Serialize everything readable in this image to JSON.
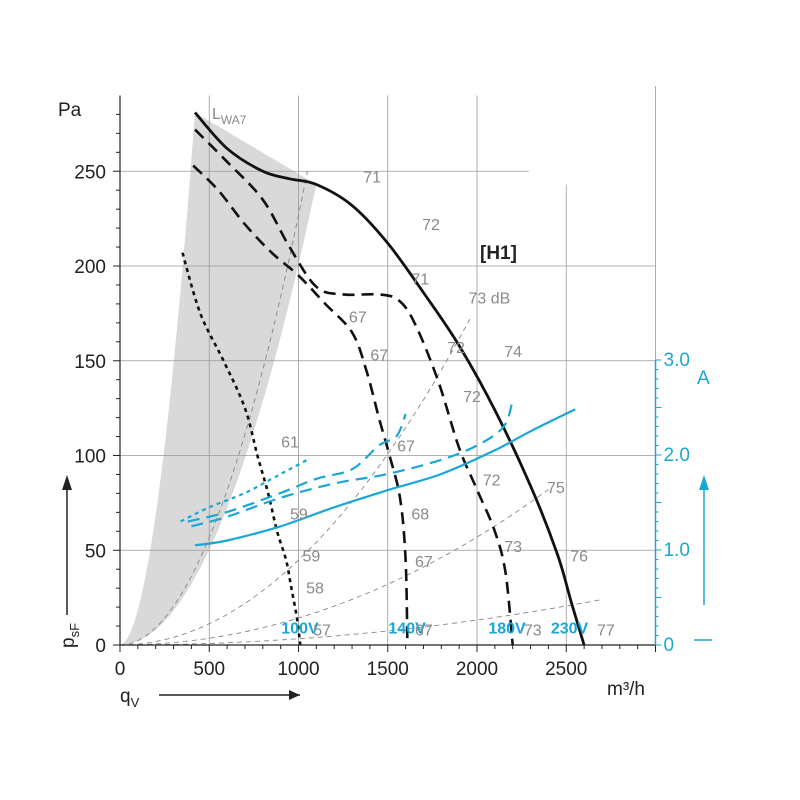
{
  "chart_data": {
    "type": "line",
    "y_axis_unit": "Pa",
    "y_axis_symbol": "p",
    "y_axis_symbol_sub": "sF",
    "x_axis_unit": "m³/h",
    "x_axis_symbol": "q",
    "x_axis_symbol_sub": "V",
    "right_axis_unit": "A",
    "xlim": [
      0,
      3000
    ],
    "ylim": [
      0,
      280
    ],
    "right_ylim": [
      0,
      3.5
    ],
    "x_ticks": [
      0,
      500,
      1000,
      1500,
      2000,
      2500
    ],
    "y_ticks": [
      0,
      50,
      100,
      150,
      200,
      250
    ],
    "right_ticks": [
      "0",
      "1.0",
      "2.0",
      "3.0"
    ],
    "right_tick_values": [
      0,
      1.0,
      2.0,
      3.0
    ],
    "curve_label": "[H1]",
    "sound_label": "L",
    "sound_label_sub": "WA7",
    "colors": {
      "pressure": "#111111",
      "current": "#1aa7d6",
      "labels": "#8a8a8a",
      "shade": "#d9d9d9"
    },
    "pressure_series": [
      {
        "voltage": "230V",
        "style": "solid",
        "x": [
          420,
          600,
          800,
          950,
          1100,
          1300,
          1500,
          1700,
          1900,
          2100,
          2300,
          2450,
          2530,
          2600
        ],
        "y": [
          281,
          262,
          250,
          246,
          243,
          232,
          212,
          186,
          158,
          124,
          84,
          48,
          22,
          0
        ]
      },
      {
        "voltage": "180V",
        "style": "dash",
        "x": [
          420,
          600,
          800,
          950,
          1100,
          1250,
          1450,
          1560,
          1650,
          1780,
          1900,
          2000,
          2100,
          2160,
          2200
        ],
        "y": [
          272,
          255,
          235,
          210,
          189,
          185,
          185,
          182,
          170,
          140,
          104,
          82,
          60,
          38,
          0
        ]
      },
      {
        "voltage": "140V",
        "style": "dash",
        "x": [
          410,
          550,
          700,
          850,
          1000,
          1150,
          1300,
          1380,
          1450,
          1510,
          1570,
          1600,
          1610
        ],
        "y": [
          253,
          240,
          222,
          207,
          195,
          180,
          165,
          145,
          120,
          100,
          77,
          45,
          0
        ]
      },
      {
        "voltage": "100V",
        "style": "dot",
        "x": [
          350,
          450,
          580,
          700,
          770,
          830,
          880,
          930,
          960,
          990,
          1010
        ],
        "y": [
          207,
          175,
          150,
          125,
          100,
          80,
          60,
          45,
          30,
          15,
          0
        ]
      }
    ],
    "current_series": [
      {
        "voltage": "230V",
        "style": "solid",
        "x": [
          420,
          600,
          900,
          1200,
          1500,
          1800,
          2100,
          2300,
          2550
        ],
        "y_amps": [
          1.05,
          1.1,
          1.25,
          1.45,
          1.63,
          1.8,
          2.05,
          2.25,
          2.48
        ]
      },
      {
        "voltage": "180V",
        "style": "dash",
        "x": [
          400,
          600,
          900,
          1200,
          1500,
          1800,
          2000,
          2150,
          2200
        ],
        "y_amps": [
          1.25,
          1.35,
          1.55,
          1.7,
          1.8,
          1.95,
          2.1,
          2.3,
          2.58
        ]
      },
      {
        "voltage": "140V",
        "style": "dash",
        "x": [
          380,
          600,
          900,
          1100,
          1300,
          1450,
          1550,
          1600
        ],
        "y_amps": [
          1.3,
          1.4,
          1.6,
          1.75,
          1.85,
          2.1,
          2.2,
          2.43
        ]
      },
      {
        "voltage": "100V",
        "style": "dot",
        "x": [
          340,
          500,
          700,
          850,
          950,
          1050
        ],
        "y_amps": [
          1.3,
          1.45,
          1.6,
          1.75,
          1.85,
          1.95
        ]
      }
    ],
    "system_curves": [
      {
        "label": "57",
        "x": [
          0,
          1050
        ],
        "y": [
          0,
          250
        ]
      },
      {
        "label": "73 dB",
        "x": [
          0,
          1960
        ],
        "y": [
          0,
          172
        ]
      },
      {
        "label": "75",
        "x": [
          0,
          2400
        ],
        "y": [
          0,
          82
        ]
      },
      {
        "label": "77",
        "x": [
          0,
          2700
        ],
        "y": [
          0,
          24
        ]
      }
    ],
    "voltage_labels": [
      {
        "text": "100V",
        "x": 870,
        "y": 3
      },
      {
        "text": "140V",
        "x": 1470,
        "y": 3
      },
      {
        "text": "180V",
        "x": 2030,
        "y": 3
      },
      {
        "text": "230V",
        "x": 2380,
        "y": 3
      }
    ],
    "sound_levels": [
      {
        "text": "71",
        "x": 1340,
        "y": 242
      },
      {
        "text": "72",
        "x": 1670,
        "y": 217
      },
      {
        "text": "73 dB",
        "x": 1930,
        "y": 178
      },
      {
        "text": "74",
        "x": 2130,
        "y": 150
      },
      {
        "text": "76",
        "x": 2500,
        "y": 42
      },
      {
        "text": "71",
        "x": 1610,
        "y": 188
      },
      {
        "text": "72",
        "x": 1810,
        "y": 152
      },
      {
        "text": "72",
        "x": 1900,
        "y": 126
      },
      {
        "text": "72",
        "x": 2010,
        "y": 82
      },
      {
        "text": "73",
        "x": 2130,
        "y": 47
      },
      {
        "text": "73",
        "x": 2240,
        "y": 3
      },
      {
        "text": "77",
        "x": 2650,
        "y": 3
      },
      {
        "text": "75",
        "x": 2370,
        "y": 78
      },
      {
        "text": "67",
        "x": 1260,
        "y": 168
      },
      {
        "text": "67",
        "x": 1380,
        "y": 148
      },
      {
        "text": "67",
        "x": 1530,
        "y": 100
      },
      {
        "text": "68",
        "x": 1610,
        "y": 64
      },
      {
        "text": "67",
        "x": 1630,
        "y": 39
      },
      {
        "text": "67",
        "x": 1630,
        "y": 3
      },
      {
        "text": "61",
        "x": 880,
        "y": 102
      },
      {
        "text": "59",
        "x": 930,
        "y": 64
      },
      {
        "text": "59",
        "x": 1000,
        "y": 42
      },
      {
        "text": "58",
        "x": 1020,
        "y": 25
      },
      {
        "text": "57",
        "x": 1060,
        "y": 3
      }
    ]
  }
}
